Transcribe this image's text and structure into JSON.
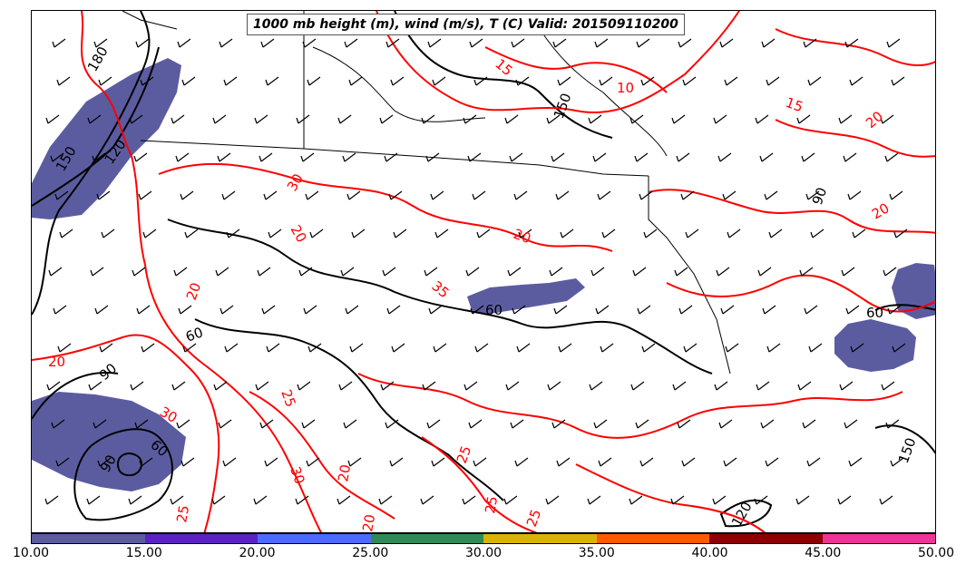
{
  "title": "1000 mb height (m), wind (m/s), T (C) Valid: 201509110200",
  "colors": {
    "height_contour": "#000000",
    "temperature_contour": "#ff0000",
    "state_lines": "#000000",
    "wind_fill": "#5b5ca0"
  },
  "colorbar": {
    "segments": [
      {
        "from": "10.00",
        "color": "#5b5ca0"
      },
      {
        "from": "15.00",
        "color": "#5b22bf"
      },
      {
        "from": "20.00",
        "color": "#4d6bff"
      },
      {
        "from": "25.00",
        "color": "#2e8b57"
      },
      {
        "from": "30.00",
        "color": "#d9b307"
      },
      {
        "from": "35.00",
        "color": "#ff5a00"
      },
      {
        "from": "40.00",
        "color": "#8b0000"
      },
      {
        "from": "45.00",
        "color": "#ee3399"
      }
    ],
    "tick_labels": [
      "10.00",
      "15.00",
      "20.00",
      "25.00",
      "30.00",
      "35.00",
      "40.00",
      "45.00",
      "50.00"
    ]
  },
  "height_labels": [
    "180",
    "150",
    "120",
    "90",
    "60",
    "90",
    "60",
    "60",
    "150",
    "150",
    "90",
    "120",
    "60"
  ],
  "temperature_labels": [
    "15",
    "10",
    "20",
    "30",
    "20",
    "20",
    "35",
    "20",
    "25",
    "30",
    "25",
    "20",
    "25",
    "20",
    "25",
    "20",
    "30",
    "25",
    "20",
    "15"
  ]
}
